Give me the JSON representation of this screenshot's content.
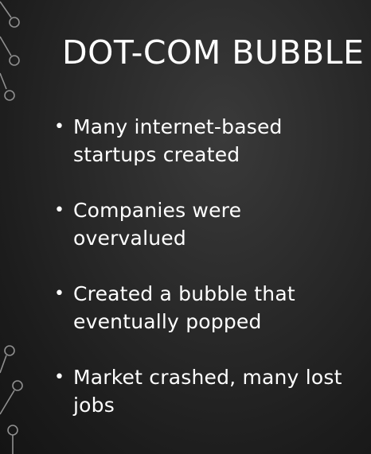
{
  "slide": {
    "title": "DOT-COM BUBBLE",
    "bullets": [
      {
        "text": "Many internet-based startups created"
      },
      {
        "text": "Companies were overvalued"
      },
      {
        "text": "Created a bubble that eventually popped"
      },
      {
        "text": "Market crashed, many lost jobs"
      }
    ],
    "bullet_glyph": "•"
  },
  "decorations": {
    "top_left": "circuit-lines-icon",
    "bottom_left": "circuit-lines-icon"
  },
  "colors": {
    "background": "#2a2a2a",
    "text": "#ffffff",
    "circuit": "#8f8f8f"
  }
}
